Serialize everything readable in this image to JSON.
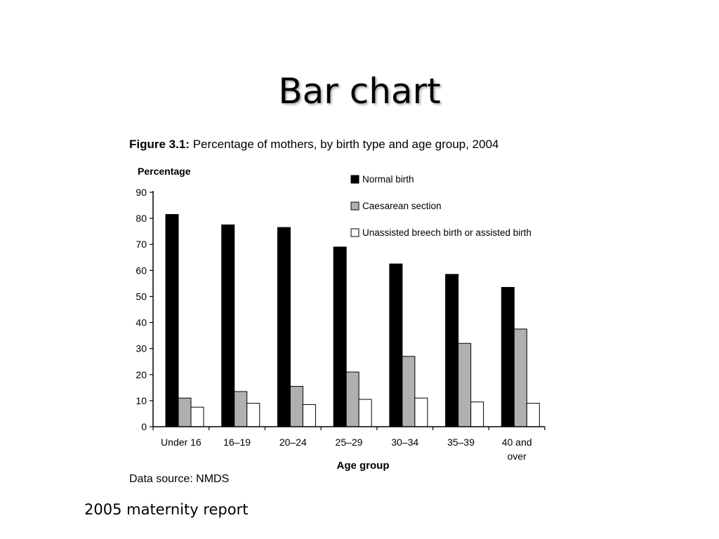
{
  "slide": {
    "title": "Bar chart",
    "footer": "2005 maternity report"
  },
  "figure": {
    "label": "Figure 3.1:",
    "caption": "Percentage of mothers, by birth type and age group, 2004",
    "source": "Data source: NMDS"
  },
  "chart_data": {
    "type": "bar",
    "title": "Percentage of mothers, by birth type and age group, 2004",
    "xlabel": "Age group",
    "ylabel": "Percentage",
    "ylim": [
      0,
      90
    ],
    "yticks": [
      0,
      10,
      20,
      30,
      40,
      50,
      60,
      70,
      80,
      90
    ],
    "grid": false,
    "legend_position": "top-right",
    "categories": [
      "Under 16",
      "16–19",
      "20–24",
      "25–29",
      "30–34",
      "35–39",
      "40 and over"
    ],
    "category_lines": [
      [
        "Under 16"
      ],
      [
        "16–19"
      ],
      [
        "20–24"
      ],
      [
        "25–29"
      ],
      [
        "30–34"
      ],
      [
        "35–39"
      ],
      [
        "40 and",
        "over"
      ]
    ],
    "series": [
      {
        "name": "Normal birth",
        "color": "#000000",
        "values": [
          81.5,
          77.5,
          76.5,
          69,
          62.5,
          58.5,
          53.5
        ]
      },
      {
        "name": "Caesarean section",
        "color": "#b0b0b0",
        "values": [
          11,
          13.5,
          15.5,
          21,
          27,
          32,
          37.5
        ]
      },
      {
        "name": "Unassisted breech birth or assisted birth",
        "color": "#ffffff",
        "values": [
          7.5,
          9,
          8.5,
          10.5,
          11,
          9.5,
          9
        ]
      }
    ]
  }
}
